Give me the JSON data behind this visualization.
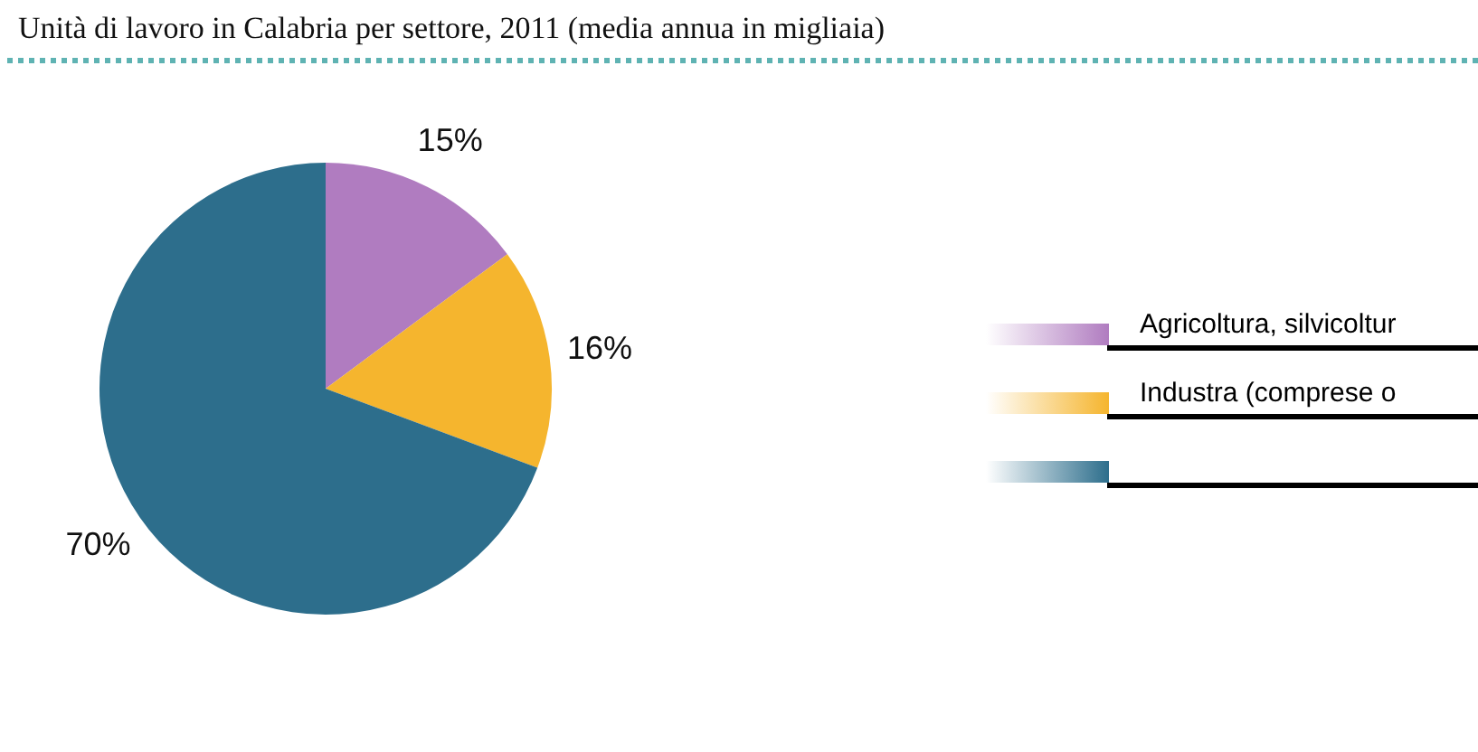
{
  "chart_data": {
    "type": "pie",
    "title": "Unità di lavoro in Calabria per settore, 2011 (media annua in migliaia)",
    "categories": [
      "Agricoltura, silvicoltur",
      "Industra (comprese o",
      null
    ],
    "values": [
      15,
      16,
      70
    ],
    "colors": [
      "#b07cc0",
      "#f5b52e",
      "#2d6e8c"
    ],
    "value_labels": [
      "15%",
      "16%",
      "70%"
    ],
    "legend": "right"
  }
}
